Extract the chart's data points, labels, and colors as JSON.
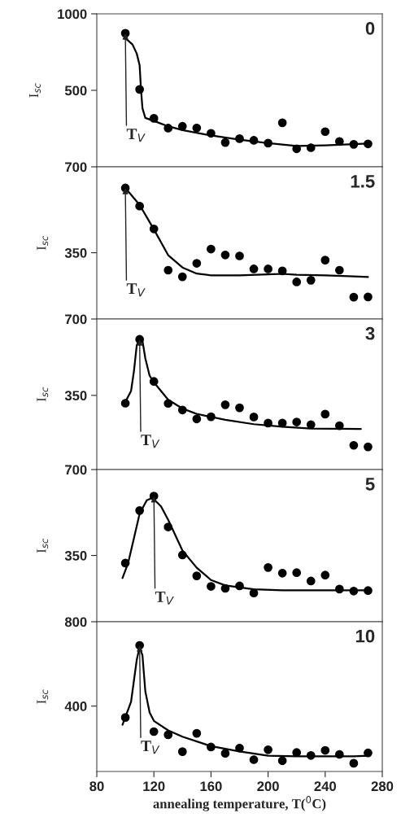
{
  "chart_data": [
    {
      "type": "scatter",
      "ylabel": "I$_{sc}$",
      "xlim": [
        80,
        280
      ],
      "xticks": [
        80,
        120,
        160,
        200,
        240,
        280
      ],
      "ylim": [
        0,
        1000
      ],
      "yticks": [
        1000,
        500
      ],
      "tick_labels": "y",
      "marker": "circle",
      "grid": false,
      "legend": false,
      "annotations": [
        "0",
        {
          "text": "T$_{V}$",
          "x": 100,
          "y": 873
        }
      ],
      "x": [
        100,
        110,
        120,
        130,
        140,
        150,
        160,
        170,
        180,
        190,
        200,
        210,
        220,
        230,
        240,
        250,
        260,
        270
      ],
      "series": [
        {
          "color": "#000000",
          "values": [
            873,
            506,
            317,
            253,
            265,
            254,
            219,
            159,
            184,
            173,
            155,
            288,
            118,
            125,
            230,
            166,
            147,
            150
          ]
        },
        {
          "type": "line",
          "color": "#000000",
          "marker": "none",
          "line_style": "solid",
          "x": [
            100,
            105,
            108,
            110,
            111,
            112,
            114,
            120,
            130,
            140,
            160,
            180,
            200,
            220,
            240,
            260,
            270
          ],
          "values": [
            841,
            800,
            740,
            664,
            500,
            382,
            320,
            300,
            265,
            240,
            205,
            178,
            155,
            136,
            140,
            148,
            152
          ]
        }
      ]
    },
    {
      "type": "scatter",
      "ylabel": "I$_{sc}$",
      "xlim": [
        80,
        280
      ],
      "xticks": [
        80,
        120,
        160,
        200,
        240,
        280
      ],
      "ylim": [
        80,
        700
      ],
      "yticks": [
        700,
        350
      ],
      "tick_labels": "y",
      "marker": "circle",
      "grid": false,
      "legend": false,
      "annotations": [
        "1.5",
        {
          "text": "T$_{V}$",
          "x": 100,
          "y": 614
        }
      ],
      "x": [
        100,
        110,
        120,
        130,
        140,
        150,
        160,
        170,
        180,
        190,
        200,
        210,
        220,
        230,
        240,
        250,
        260,
        270
      ],
      "series": [
        {
          "color": "#000000",
          "values": [
            614,
            540,
            447,
            279,
            252,
            307,
            365,
            341,
            337,
            284,
            284,
            276,
            231,
            238,
            320,
            279,
            169,
            170
          ]
        },
        {
          "type": "line",
          "color": "#000000",
          "marker": "none",
          "line_style": "solid",
          "x": [
            100,
            110,
            120,
            130,
            140,
            150,
            160,
            180,
            200,
            210,
            220,
            240,
            260,
            270
          ],
          "values": [
            614,
            545,
            445,
            340,
            290,
            265,
            258,
            258,
            262,
            264,
            260,
            258,
            254,
            251
          ]
        }
      ]
    },
    {
      "type": "scatter",
      "ylabel": "I$_{sc}$",
      "xlim": [
        80,
        280
      ],
      "xticks": [
        80,
        120,
        160,
        200,
        240,
        280
      ],
      "ylim": [
        10,
        700
      ],
      "yticks": [
        700,
        350
      ],
      "tick_labels": "y",
      "marker": "circle",
      "grid": false,
      "legend": false,
      "annotations": [
        "3",
        {
          "text": "T$_{V}$",
          "x": 110,
          "y": 607
        }
      ],
      "x": [
        100,
        110,
        120,
        130,
        140,
        150,
        160,
        170,
        180,
        190,
        200,
        210,
        220,
        230,
        240,
        250,
        260,
        270
      ],
      "series": [
        {
          "color": "#000000",
          "values": [
            314,
            607,
            414,
            313,
            283,
            242,
            252,
            307,
            293,
            251,
            223,
            223,
            228,
            216,
            264,
            211,
            121,
            114
          ]
        },
        {
          "type": "line",
          "color": "#000000",
          "marker": "none",
          "line_style": "solid",
          "x": [
            100,
            104,
            106,
            108,
            110,
            112,
            114,
            117,
            120,
            130,
            140,
            150,
            170,
            190,
            210,
            230,
            250,
            265
          ],
          "values": [
            320,
            370,
            460,
            580,
            607,
            600,
            520,
            440,
            410,
            330,
            290,
            265,
            238,
            218,
            206,
            198,
            197,
            196
          ]
        }
      ]
    },
    {
      "type": "scatter",
      "ylabel": "I$_{sc}$",
      "xlim": [
        80,
        280
      ],
      "xticks": [
        80,
        120,
        160,
        200,
        240,
        280
      ],
      "ylim": [
        80,
        700
      ],
      "yticks": [
        700,
        350
      ],
      "tick_labels": "y",
      "marker": "circle",
      "grid": false,
      "legend": false,
      "annotations": [
        "5",
        {
          "text": "T$_{V}$",
          "x": 120,
          "y": 592
        }
      ],
      "x": [
        100,
        110,
        120,
        130,
        140,
        150,
        160,
        170,
        180,
        190,
        200,
        210,
        220,
        230,
        240,
        250,
        260,
        270
      ],
      "series": [
        {
          "color": "#000000",
          "values": [
            319,
            533,
            592,
            466,
            352,
            267,
            224,
            216,
            226,
            197,
            301,
            278,
            280,
            246,
            270,
            213,
            205,
            207
          ]
        },
        {
          "type": "line",
          "color": "#000000",
          "marker": "none",
          "line_style": "solid",
          "x": [
            98,
            102,
            106,
            110,
            115,
            119,
            125,
            130,
            140,
            150,
            160,
            170,
            190,
            210,
            240,
            270
          ],
          "values": [
            258,
            320,
            420,
            520,
            575,
            585,
            550,
            495,
            370,
            300,
            250,
            228,
            212,
            208,
            208,
            208
          ]
        }
      ]
    },
    {
      "type": "scatter",
      "ylabel": "I$_{sc}$",
      "xlabel": "annealing temperature, T($^{0}$C)",
      "xlim": [
        80,
        280
      ],
      "xticks": [
        80,
        120,
        160,
        200,
        240,
        280
      ],
      "ylim": [
        90,
        800
      ],
      "yticks": [
        800,
        400
      ],
      "marker": "circle",
      "grid": false,
      "legend": false,
      "annotations": [
        "10",
        {
          "text": "T$_{V}$",
          "x": 110,
          "y": 688
        }
      ],
      "x": [
        100,
        110,
        120,
        130,
        140,
        150,
        160,
        170,
        180,
        190,
        200,
        210,
        220,
        230,
        240,
        250,
        260,
        270
      ],
      "series": [
        {
          "color": "#000000",
          "values": [
            346,
            688,
            279,
            264,
            184,
            271,
            206,
            176,
            201,
            146,
            193,
            141,
            180,
            166,
            190,
            171,
            129,
            178
          ]
        },
        {
          "type": "line",
          "color": "#000000",
          "marker": "none",
          "line_style": "solid",
          "x": [
            98,
            104,
            108,
            110,
            112,
            114,
            117,
            120,
            130,
            140,
            160,
            180,
            200,
            220,
            240,
            260,
            270
          ],
          "values": [
            311,
            420,
            620,
            680,
            640,
            470,
            370,
            330,
            285,
            255,
            210,
            185,
            165,
            162,
            162,
            162,
            165
          ]
        }
      ]
    }
  ]
}
